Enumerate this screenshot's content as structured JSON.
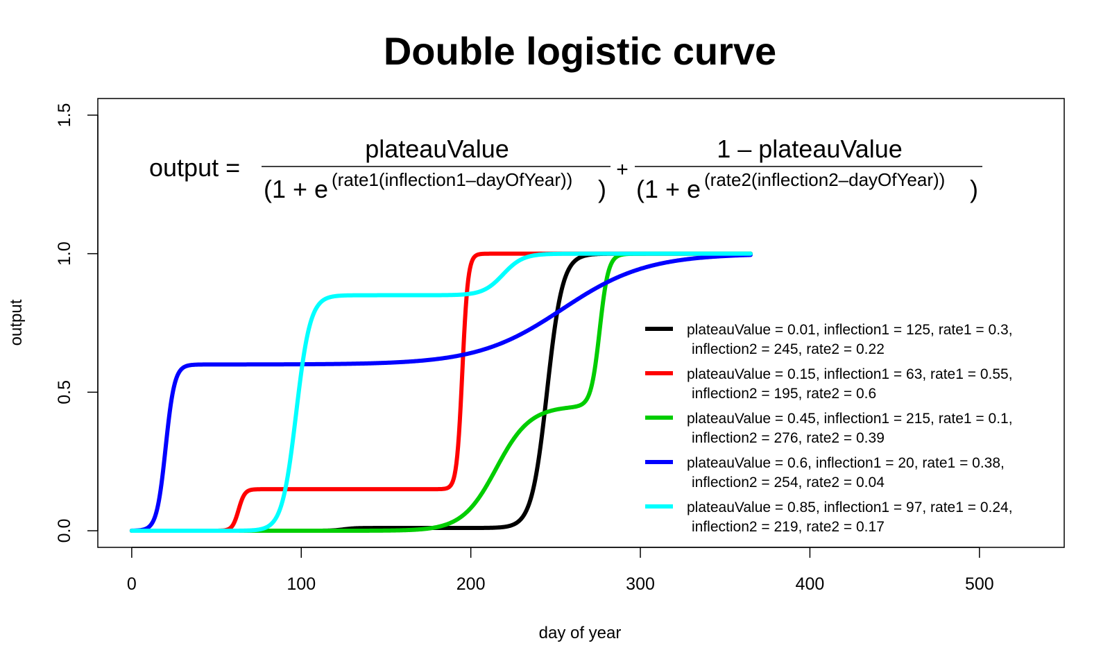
{
  "chart_data": {
    "type": "line",
    "title": "Double logistic curve",
    "xlabel": "day of year",
    "ylabel": "output",
    "xlim": [
      -20,
      550
    ],
    "ylim": [
      -0.06,
      1.56
    ],
    "xticks": [
      "0",
      "100",
      "200",
      "300",
      "400",
      "500"
    ],
    "yticks": [
      "0.0",
      "0.5",
      "1.0",
      "1.5"
    ],
    "x_range": [
      0,
      365
    ],
    "grid": false,
    "legend_position": "bottom-right",
    "formula": {
      "lhs": "output =",
      "t1_num": "plateauValue",
      "t1_den_open": "(1 + e",
      "t1_exp": "(rate1(inflection1–dayOfYear))",
      "t1_den_close": ")",
      "plus": "+",
      "t2_num": "1 – plateauValue",
      "t2_den_open": "(1 + e",
      "t2_exp": "(rate2(inflection2–dayOfYear))",
      "t2_den_close": ")"
    },
    "series": [
      {
        "color": "#000000",
        "plateauValue": 0.01,
        "inflection1": 125,
        "rate1": 0.3,
        "inflection2": 245,
        "rate2": 0.22,
        "label_line1": "plateauValue = 0.01, inflection1 = 125, rate1 = 0.3,",
        "label_line2": "inflection2 = 245, rate2 = 0.22"
      },
      {
        "color": "#ff0000",
        "plateauValue": 0.15,
        "inflection1": 63,
        "rate1": 0.55,
        "inflection2": 195,
        "rate2": 0.6,
        "label_line1": "plateauValue = 0.15, inflection1 = 63, rate1 = 0.55,",
        "label_line2": "inflection2 = 195, rate2 = 0.6"
      },
      {
        "color": "#00cd00",
        "plateauValue": 0.45,
        "inflection1": 215,
        "rate1": 0.1,
        "inflection2": 276,
        "rate2": 0.39,
        "label_line1": "plateauValue = 0.45, inflection1 = 215, rate1 = 0.1,",
        "label_line2": "inflection2 = 276, rate2 = 0.39"
      },
      {
        "color": "#0000ff",
        "plateauValue": 0.6,
        "inflection1": 20,
        "rate1": 0.38,
        "inflection2": 254,
        "rate2": 0.04,
        "label_line1": "plateauValue = 0.6, inflection1 = 20, rate1 = 0.38,",
        "label_line2": "inflection2 = 254, rate2 = 0.04"
      },
      {
        "color": "#00ffff",
        "plateauValue": 0.85,
        "inflection1": 97,
        "rate1": 0.24,
        "inflection2": 219,
        "rate2": 0.17,
        "label_line1": "plateauValue = 0.85, inflection1 = 97, rate1 = 0.24,",
        "label_line2": "inflection2 = 219, rate2 = 0.17"
      }
    ]
  }
}
